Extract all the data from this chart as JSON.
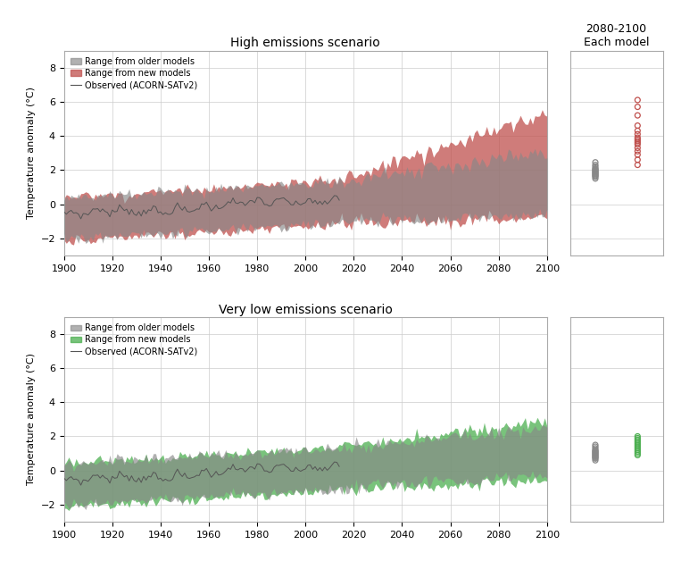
{
  "title_top": "High emissions scenario",
  "title_bottom": "Very low emissions scenario",
  "side_title_line1": "2080-2100",
  "side_title_line2": "Each model",
  "ylabel": "Temperature anomaly (°C)",
  "xmin": 1900,
  "xmax": 2100,
  "ymin": -3,
  "ymax": 9,
  "yticks": [
    -2,
    0,
    2,
    4,
    6,
    8
  ],
  "xticks": [
    1900,
    1920,
    1940,
    1960,
    1980,
    2000,
    2020,
    2040,
    2060,
    2080,
    2100
  ],
  "color_old_models": "#888888",
  "color_new_models_high": "#c0504d",
  "color_new_models_low": "#4caf50",
  "color_observed": "#555555",
  "legend_labels": [
    "Range from older models",
    "Range from new models",
    "Observed (ACORN-SATv2)"
  ],
  "hi_old_dots": [
    1.5,
    1.6,
    1.65,
    1.7,
    1.75,
    1.8,
    1.85,
    1.9,
    1.95,
    2.0,
    2.05,
    2.1,
    2.2,
    2.3,
    2.45
  ],
  "hi_new_dots": [
    2.3,
    2.6,
    2.9,
    3.1,
    3.3,
    3.5,
    3.6,
    3.7,
    3.8,
    3.9,
    4.1,
    4.3,
    4.6,
    5.2,
    5.7,
    6.1
  ],
  "lo_old_dots": [
    0.6,
    0.7,
    0.75,
    0.8,
    0.85,
    0.9,
    0.95,
    1.0,
    1.05,
    1.1,
    1.15,
    1.2,
    1.3,
    1.4,
    1.5
  ],
  "lo_new_dots": [
    0.9,
    1.0,
    1.1,
    1.2,
    1.3,
    1.4,
    1.5,
    1.6,
    1.7,
    1.8,
    1.9,
    2.0
  ]
}
